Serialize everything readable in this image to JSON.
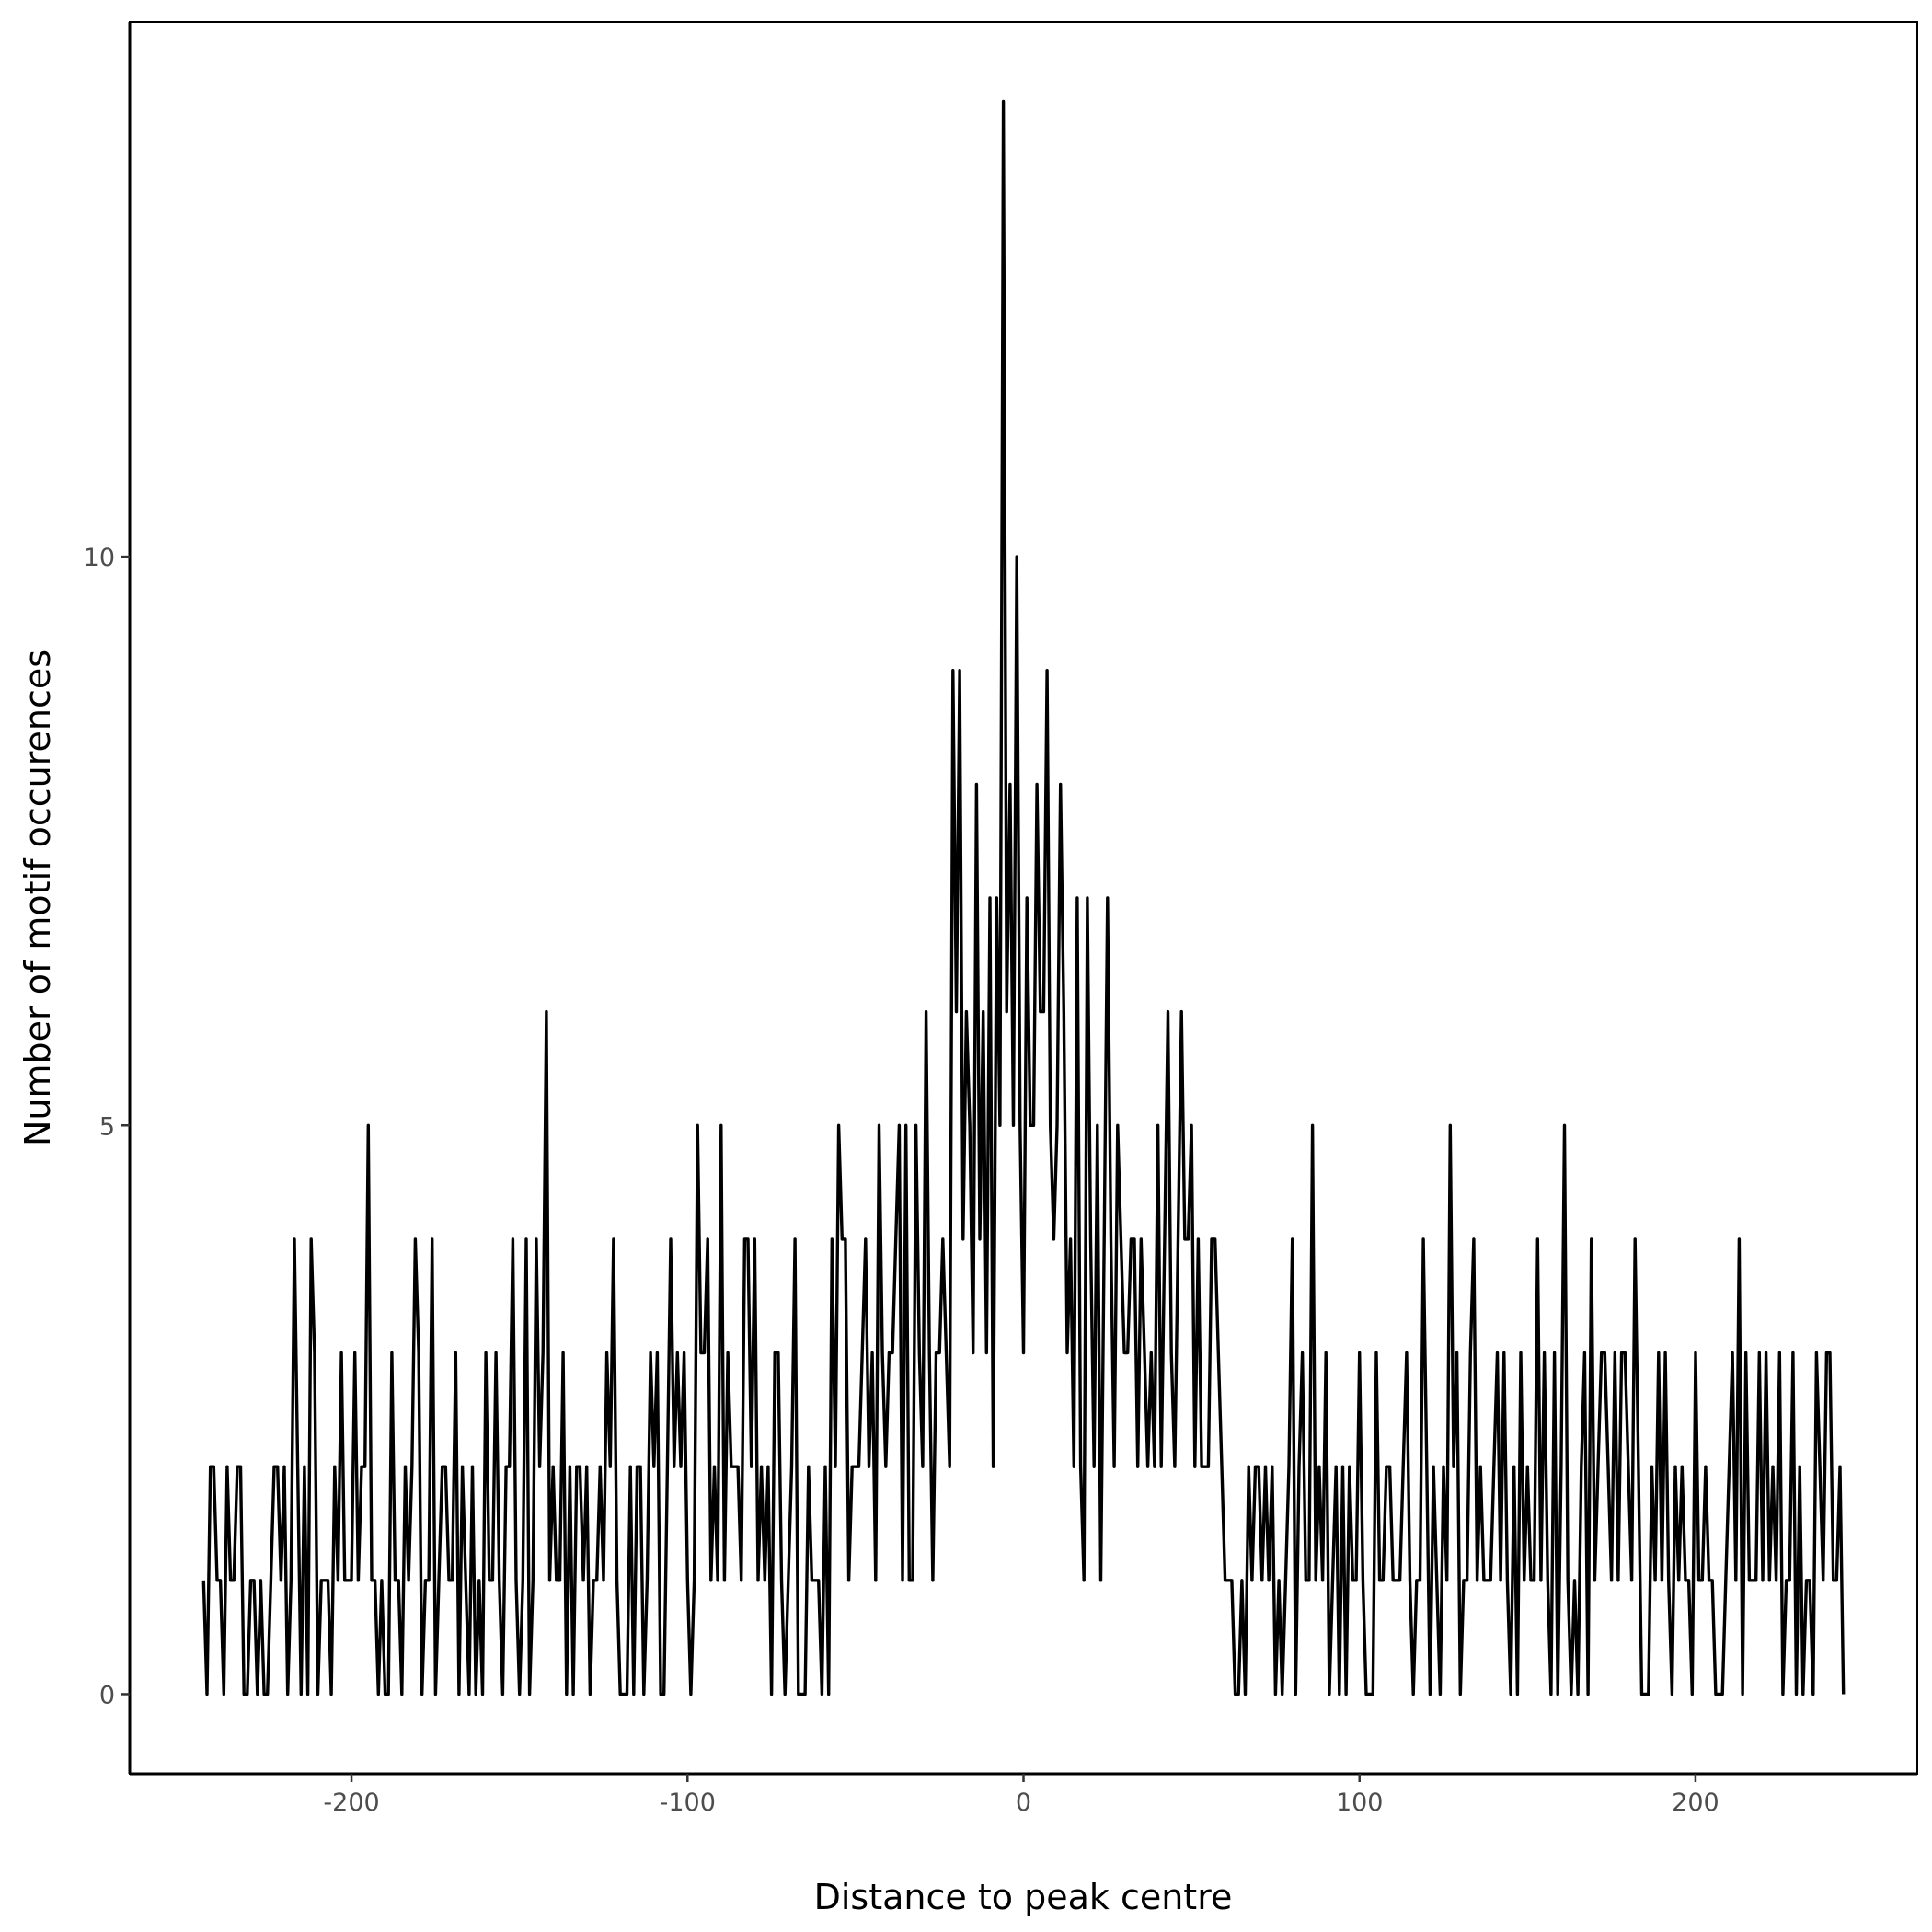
{
  "chart_data": {
    "type": "line",
    "title": "",
    "xlabel": "Distance to peak centre",
    "ylabel": "Number of motif occurences",
    "xlim": [
      -266,
      266
    ],
    "ylim": [
      -0.7,
      14.7
    ],
    "x_ticks": [
      -200,
      -100,
      0,
      100,
      200
    ],
    "x_tick_labels": [
      "-200",
      "-100",
      "0",
      "100",
      "200"
    ],
    "y_ticks": [
      0,
      5,
      10
    ],
    "y_tick_labels": [
      "0",
      "5",
      "10"
    ],
    "grid": false,
    "line_color": "#000000",
    "x_start": -244,
    "x_step": 1,
    "values": [
      1,
      0,
      2,
      2,
      1,
      1,
      0,
      2,
      1,
      1,
      2,
      2,
      0,
      0,
      1,
      1,
      0,
      1,
      0,
      0,
      1,
      2,
      2,
      1,
      2,
      0,
      1,
      4,
      2,
      0,
      2,
      0,
      4,
      3,
      0,
      1,
      1,
      1,
      0,
      2,
      1,
      3,
      1,
      1,
      1,
      3,
      1,
      2,
      2,
      5,
      1,
      1,
      0,
      1,
      0,
      0,
      3,
      1,
      1,
      0,
      2,
      1,
      2,
      4,
      3,
      0,
      1,
      1,
      4,
      0,
      1,
      2,
      2,
      1,
      1,
      3,
      0,
      2,
      1,
      0,
      2,
      0,
      1,
      0,
      3,
      1,
      1,
      3,
      1,
      0,
      2,
      2,
      4,
      1,
      0,
      1,
      4,
      0,
      1,
      4,
      2,
      3,
      6,
      1,
      2,
      1,
      1,
      3,
      0,
      2,
      0,
      2,
      2,
      1,
      2,
      0,
      1,
      1,
      2,
      1,
      3,
      2,
      4,
      1,
      0,
      0,
      0,
      2,
      0,
      2,
      2,
      0,
      1,
      3,
      2,
      3,
      0,
      0,
      2,
      4,
      2,
      3,
      2,
      3,
      1,
      0,
      1,
      5,
      3,
      3,
      4,
      1,
      2,
      1,
      5,
      1,
      3,
      2,
      2,
      2,
      1,
      4,
      4,
      2,
      4,
      1,
      2,
      1,
      2,
      0,
      3,
      3,
      1,
      0,
      1,
      2,
      4,
      0,
      0,
      0,
      2,
      1,
      1,
      1,
      0,
      2,
      0,
      4,
      2,
      5,
      4,
      4,
      1,
      2,
      2,
      2,
      3,
      4,
      2,
      3,
      1,
      5,
      3,
      2,
      3,
      3,
      4,
      5,
      1,
      5,
      1,
      1,
      5,
      3,
      2,
      6,
      3,
      1,
      3,
      3,
      4,
      3,
      2,
      9,
      6,
      9,
      4,
      6,
      5,
      3,
      8,
      4,
      6,
      3,
      7,
      2,
      7,
      5,
      14,
      6,
      8,
      5,
      10,
      5,
      3,
      7,
      5,
      5,
      8,
      6,
      6,
      9,
      5,
      4,
      5,
      8,
      6,
      3,
      4,
      2,
      7,
      2,
      1,
      7,
      4,
      2,
      5,
      1,
      4,
      7,
      4,
      2,
      5,
      4,
      3,
      3,
      4,
      4,
      2,
      4,
      3,
      2,
      3,
      2,
      5,
      2,
      4,
      6,
      3,
      2,
      4,
      6,
      4,
      4,
      5,
      2,
      4,
      2,
      2,
      2,
      4,
      4,
      3,
      2,
      1,
      1,
      1,
      0,
      0,
      1,
      0,
      2,
      1,
      2,
      2,
      1,
      2,
      1,
      2,
      0,
      1,
      0,
      1,
      2,
      4,
      0,
      2,
      3,
      1,
      1,
      5,
      1,
      2,
      1,
      3,
      0,
      1,
      2,
      0,
      2,
      0,
      2,
      1,
      1,
      3,
      1,
      0,
      0,
      0,
      3,
      1,
      1,
      2,
      2,
      1,
      1,
      1,
      2,
      3,
      1,
      0,
      1,
      1,
      4,
      2,
      0,
      2,
      1,
      0,
      2,
      1,
      5,
      2,
      3,
      0,
      1,
      1,
      3,
      4,
      1,
      2,
      1,
      1,
      1,
      2,
      3,
      1,
      3,
      1,
      0,
      2,
      0,
      3,
      1,
      2,
      1,
      1,
      4,
      1,
      3,
      1,
      0,
      3,
      0,
      2,
      5,
      1,
      0,
      1,
      0,
      2,
      3,
      0,
      4,
      1,
      2,
      3,
      3,
      2,
      1,
      3,
      1,
      3,
      3,
      2,
      1,
      4,
      2,
      0,
      0,
      0,
      2,
      1,
      3,
      1,
      3,
      1,
      0,
      2,
      1,
      2,
      1,
      1,
      0,
      3,
      1,
      1,
      2,
      1,
      1,
      0,
      0,
      0,
      1,
      2,
      3,
      1,
      4,
      0,
      3,
      1,
      1,
      1,
      3,
      1,
      3,
      1,
      2,
      1,
      3,
      0,
      1,
      1,
      3,
      0,
      2,
      0,
      1,
      1,
      0,
      3,
      2,
      1,
      3,
      3,
      1,
      1,
      2,
      0
    ]
  }
}
